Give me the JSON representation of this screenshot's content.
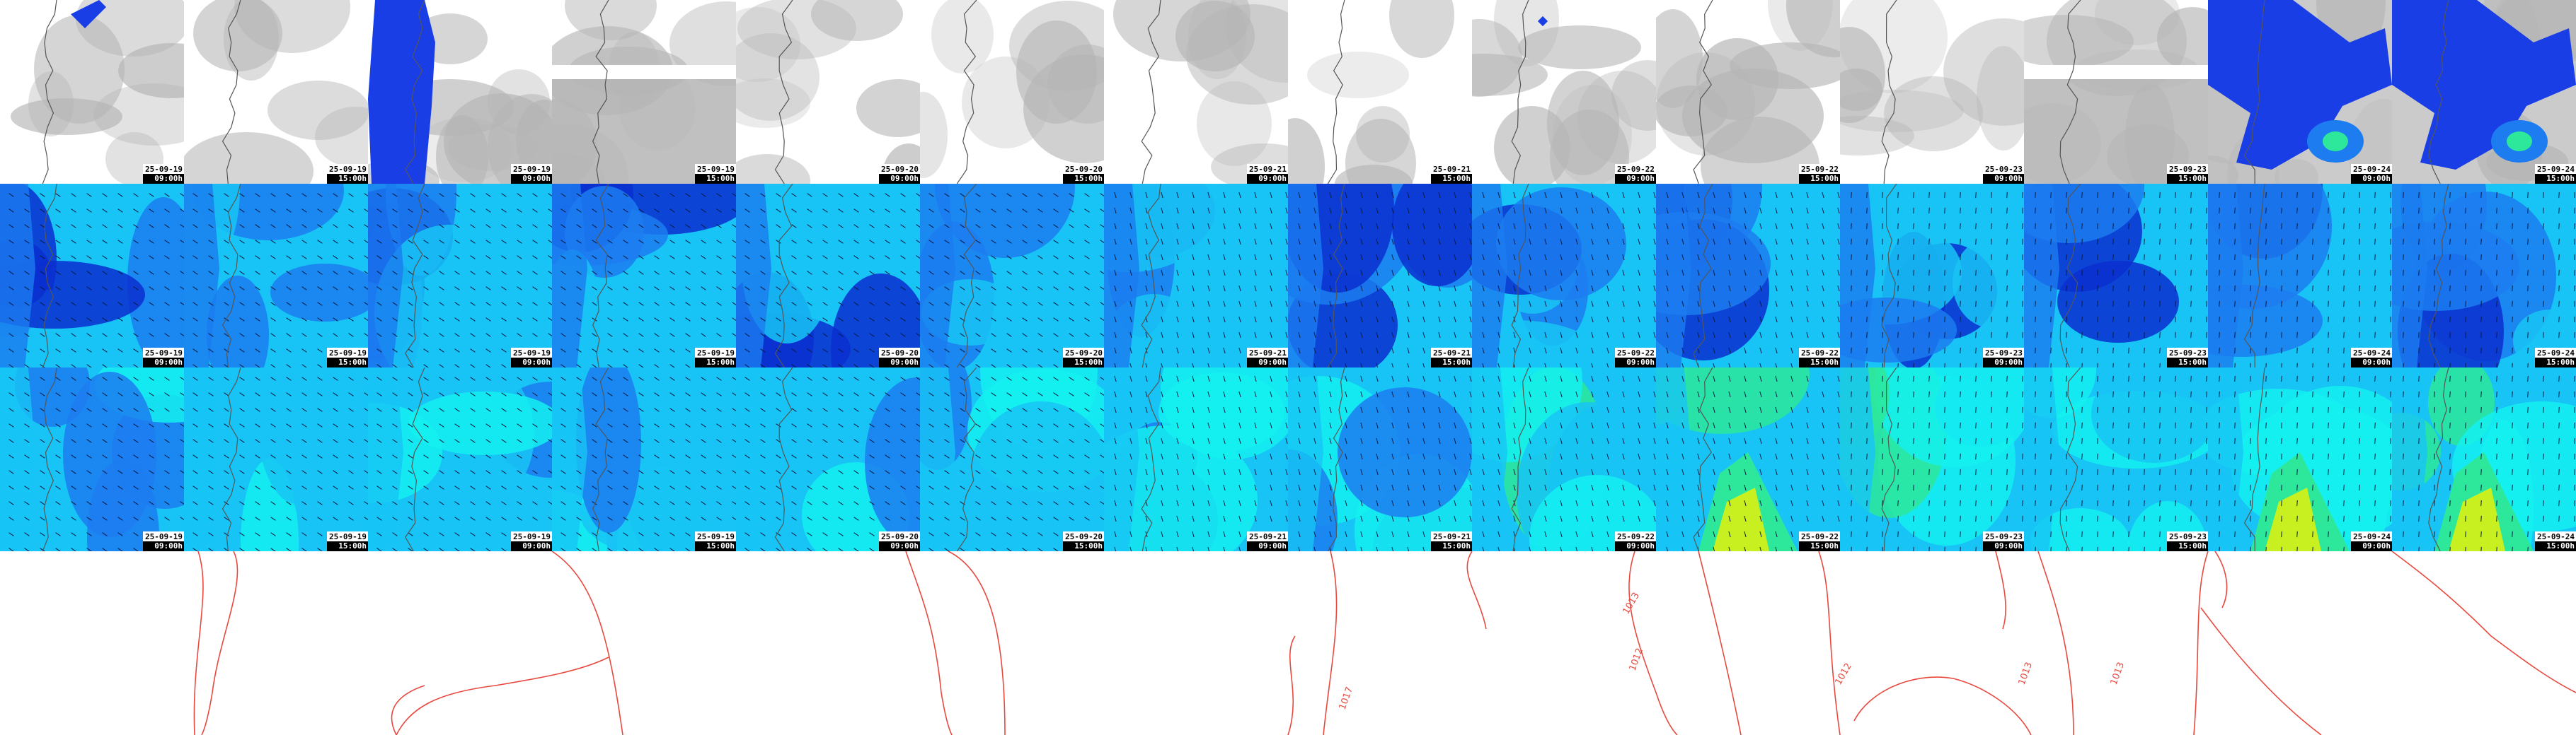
{
  "panels": {
    "columns": [
      {
        "date": "25-09-19",
        "time": "09:00h"
      },
      {
        "date": "25-09-19",
        "time": "15:00h"
      },
      {
        "date": "25-09-19",
        "time": "09:00h"
      },
      {
        "date": "25-09-19",
        "time": "15:00h"
      },
      {
        "date": "25-09-20",
        "time": "09:00h"
      },
      {
        "date": "25-09-20",
        "time": "15:00h"
      },
      {
        "date": "25-09-21",
        "time": "09:00h"
      },
      {
        "date": "25-09-21",
        "time": "15:00h"
      },
      {
        "date": "25-09-22",
        "time": "09:00h"
      },
      {
        "date": "25-09-22",
        "time": "15:00h"
      },
      {
        "date": "25-09-23",
        "time": "09:00h"
      },
      {
        "date": "25-09-23",
        "time": "15:00h"
      },
      {
        "date": "25-09-24",
        "time": "09:00h"
      },
      {
        "date": "25-09-24",
        "time": "15:00h"
      }
    ],
    "rows": [
      "clouds-precipitation",
      "wind-speed",
      "wind-gusts"
    ]
  },
  "pressure_labels": [
    "1017",
    "1013",
    "1012",
    "1012",
    "1013",
    "1013"
  ],
  "colors": {
    "cloud_gray": "#b5b5b5",
    "precip_blue": "#1a3ee6",
    "wind_dark": "#0a2fd0",
    "wind_mid": "#1c7cf0",
    "wind_light": "#17c4f5",
    "wind_cyan": "#14f0f0",
    "wind_green": "#2de89a",
    "wind_yellow": "#c8f020",
    "isobar": "#e8493f",
    "coast": "#555555"
  }
}
